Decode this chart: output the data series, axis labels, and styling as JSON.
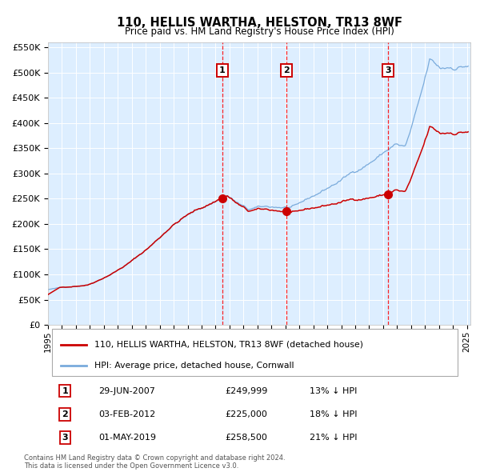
{
  "title": "110, HELLIS WARTHA, HELSTON, TR13 8WF",
  "subtitle": "Price paid vs. HM Land Registry's House Price Index (HPI)",
  "ylim": [
    0,
    560000
  ],
  "yticks": [
    0,
    50000,
    100000,
    150000,
    200000,
    250000,
    300000,
    350000,
    400000,
    450000,
    500000,
    550000
  ],
  "ytick_labels": [
    "£0",
    "£50K",
    "£100K",
    "£150K",
    "£200K",
    "£250K",
    "£300K",
    "£350K",
    "£400K",
    "£450K",
    "£500K",
    "£550K"
  ],
  "hpi_color": "#7aabdc",
  "property_color": "#cc0000",
  "plot_bg_color": "#ddeeff",
  "grid_color": "#ffffff",
  "transaction_dates": [
    "2007-06-29",
    "2012-02-03",
    "2019-05-01"
  ],
  "transaction_prices": [
    249999,
    225000,
    258500
  ],
  "transaction_labels": [
    "1",
    "2",
    "3"
  ],
  "legend_property": "110, HELLIS WARTHA, HELSTON, TR13 8WF (detached house)",
  "legend_hpi": "HPI: Average price, detached house, Cornwall",
  "table_rows": [
    {
      "num": "1",
      "date": "29-JUN-2007",
      "price": "£249,999",
      "hpi": "13% ↓ HPI"
    },
    {
      "num": "2",
      "date": "03-FEB-2012",
      "price": "£225,000",
      "hpi": "18% ↓ HPI"
    },
    {
      "num": "3",
      "date": "01-MAY-2019",
      "price": "£258,500",
      "hpi": "21% ↓ HPI"
    }
  ],
  "footnote": "Contains HM Land Registry data © Crown copyright and database right 2024.\nThis data is licensed under the Open Government Licence v3.0."
}
